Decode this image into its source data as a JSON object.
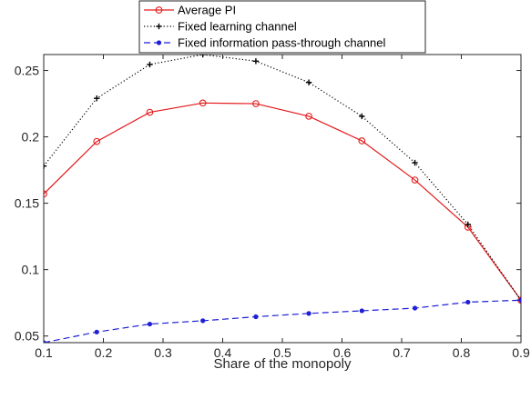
{
  "chart_data": {
    "type": "line",
    "title": "",
    "xlabel": "Share of the monopoly",
    "ylabel": "",
    "xlim": [
      0.1,
      0.9
    ],
    "ylim": [
      0.045,
      0.262
    ],
    "xticks": [
      "0.1",
      "0.2",
      "0.3",
      "0.4",
      "0.5",
      "0.6",
      "0.7",
      "0.8",
      "0.9"
    ],
    "yticks": [
      "0.05",
      "0.1",
      "0.15",
      "0.2",
      "0.25"
    ],
    "grid": false,
    "legend_position": "top-center",
    "x": [
      0.1,
      0.1889,
      0.2778,
      0.3667,
      0.4556,
      0.5444,
      0.6333,
      0.7222,
      0.8111,
      0.9
    ],
    "series": [
      {
        "name": "Average PI",
        "color": "#e41a1c",
        "line_style": "solid",
        "marker": "circle",
        "values": [
          0.157,
          0.1965,
          0.2185,
          0.2255,
          0.225,
          0.2155,
          0.197,
          0.1675,
          0.132,
          0.077
        ]
      },
      {
        "name": "Fixed learning channel",
        "color": "#000000",
        "line_style": "dotted",
        "marker": "plus",
        "values": [
          0.178,
          0.229,
          0.2545,
          0.262,
          0.257,
          0.241,
          0.2155,
          0.1805,
          0.134,
          0.077
        ]
      },
      {
        "name": "Fixed information pass-through channel",
        "color": "#1f1fd6",
        "line_style": "dashed",
        "marker": "dot",
        "values": [
          0.045,
          0.053,
          0.059,
          0.0615,
          0.0645,
          0.067,
          0.069,
          0.071,
          0.0755,
          0.077
        ]
      }
    ]
  }
}
